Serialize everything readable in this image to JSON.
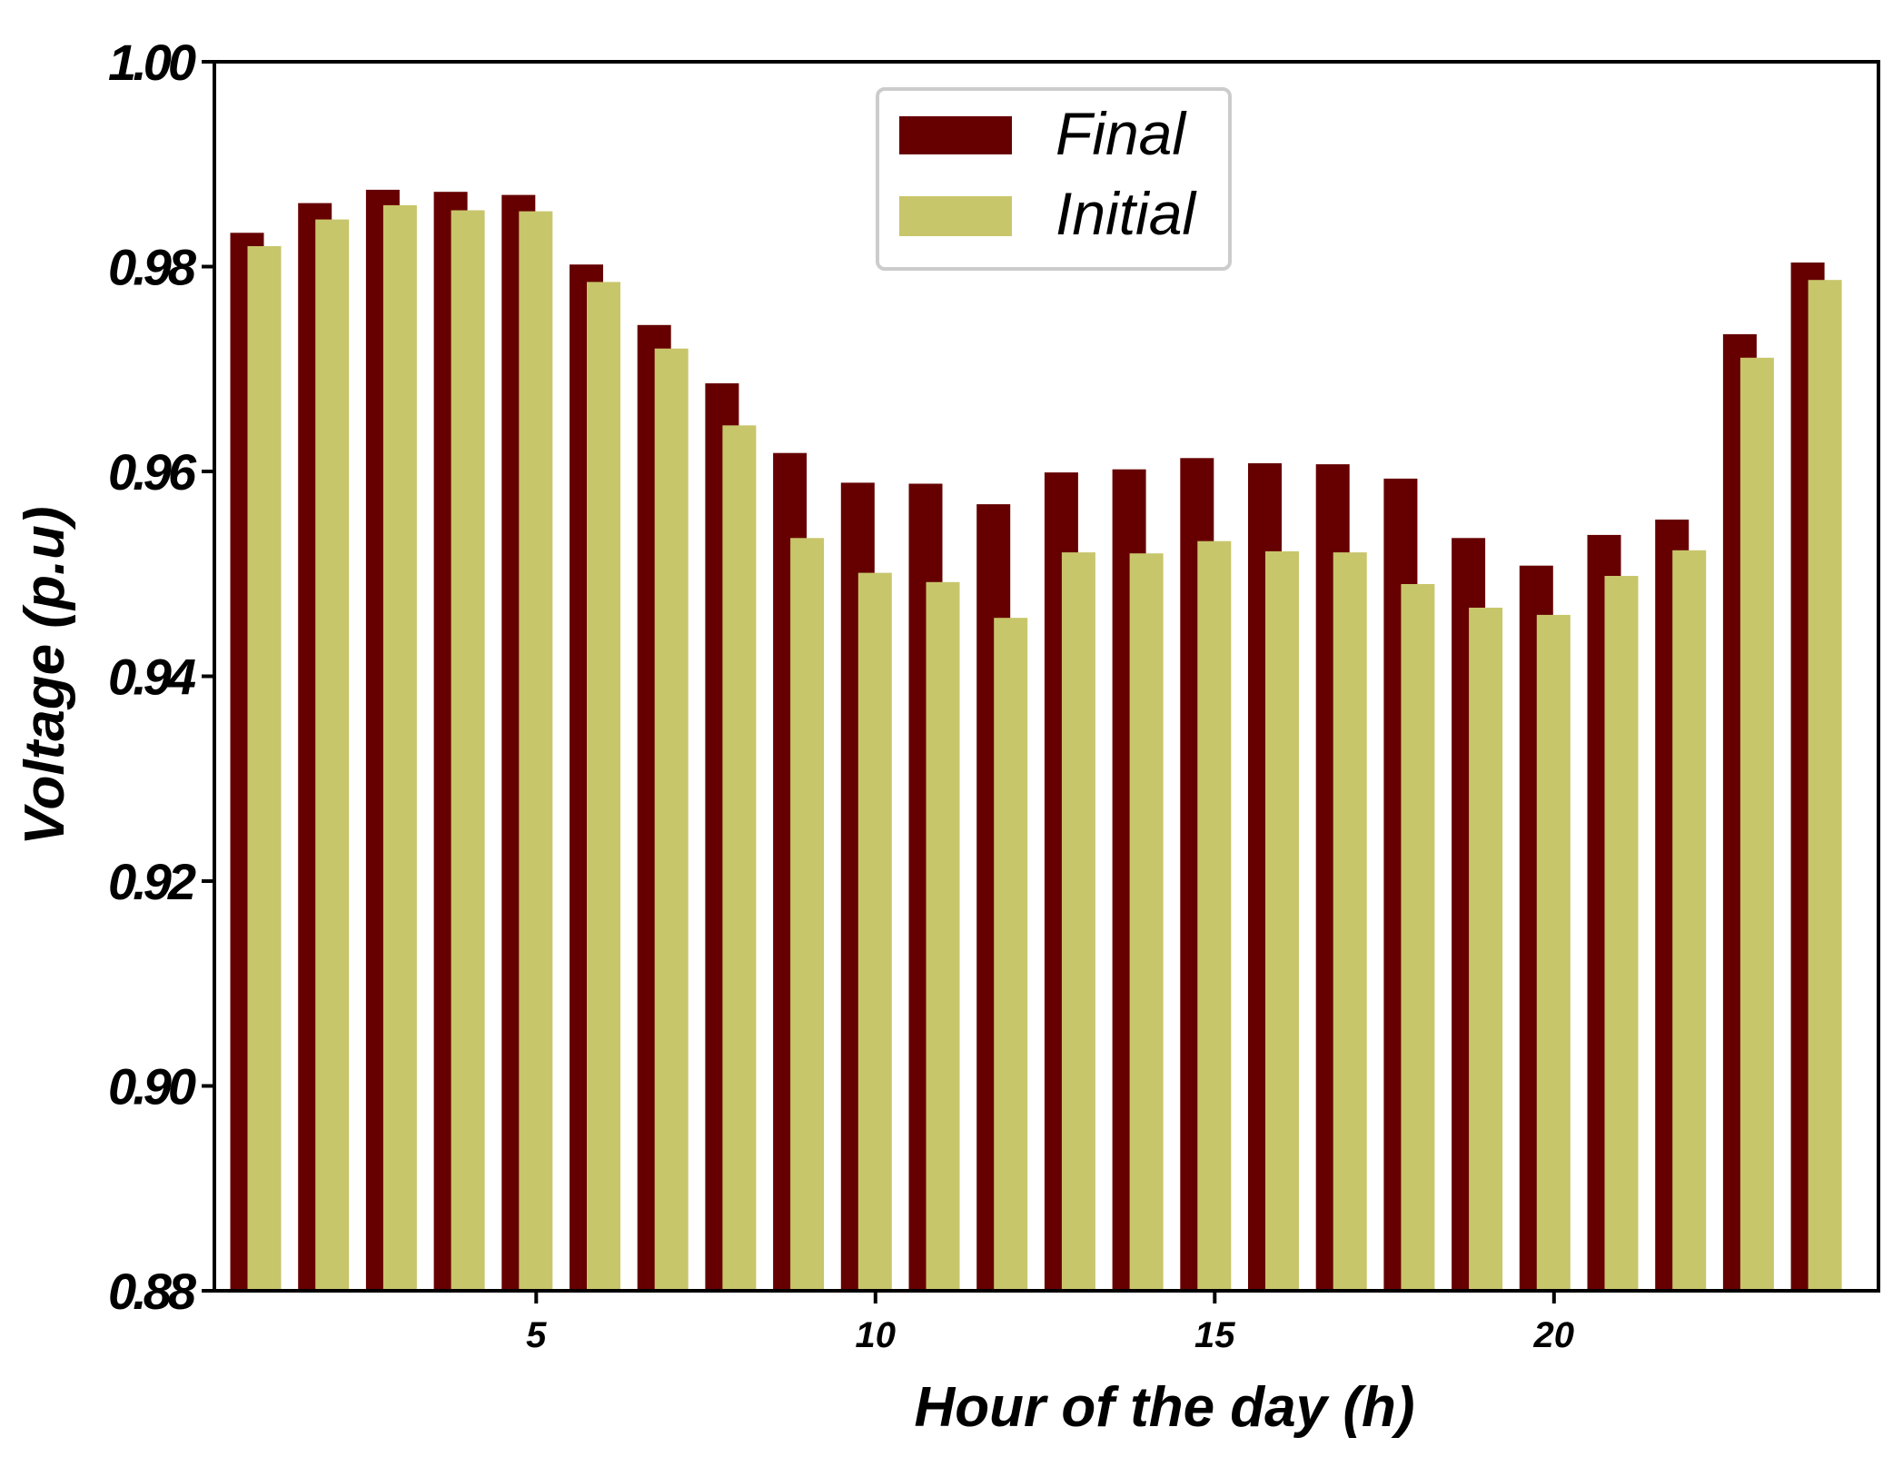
{
  "chart_data": {
    "type": "bar",
    "xlabel": "Hour of the day (h)",
    "ylabel": "Voltage (p.u)",
    "ylim": [
      0.88,
      1.0
    ],
    "yticks": [
      "0.88",
      "0.90",
      "0.92",
      "0.94",
      "0.96",
      "0.98",
      "1.00"
    ],
    "xticks": [
      "5",
      "10",
      "15",
      "20"
    ],
    "categories": [
      1,
      2,
      3,
      4,
      5,
      6,
      7,
      8,
      9,
      10,
      11,
      12,
      13,
      14,
      15,
      16,
      17,
      18,
      19,
      20,
      21,
      22,
      23,
      24
    ],
    "series": [
      {
        "name": "Final",
        "color": "#660000",
        "values": [
          0.9833,
          0.9862,
          0.9875,
          0.9873,
          0.987,
          0.9802,
          0.9743,
          0.9686,
          0.9618,
          0.9589,
          0.9588,
          0.9568,
          0.9599,
          0.9602,
          0.9613,
          0.9608,
          0.9607,
          0.9593,
          0.9535,
          0.9508,
          0.9538,
          0.9553,
          0.9734,
          0.9804
        ]
      },
      {
        "name": "Initial",
        "color": "#c8c66b",
        "values": [
          0.982,
          0.9846,
          0.986,
          0.9855,
          0.9854,
          0.9785,
          0.972,
          0.9645,
          0.9535,
          0.9501,
          0.9492,
          0.9457,
          0.9521,
          0.952,
          0.9532,
          0.9522,
          0.9521,
          0.949,
          0.9467,
          0.946,
          0.9498,
          0.9523,
          0.9711,
          0.9787
        ]
      }
    ],
    "legend_position": "top-center",
    "grid": false
  }
}
